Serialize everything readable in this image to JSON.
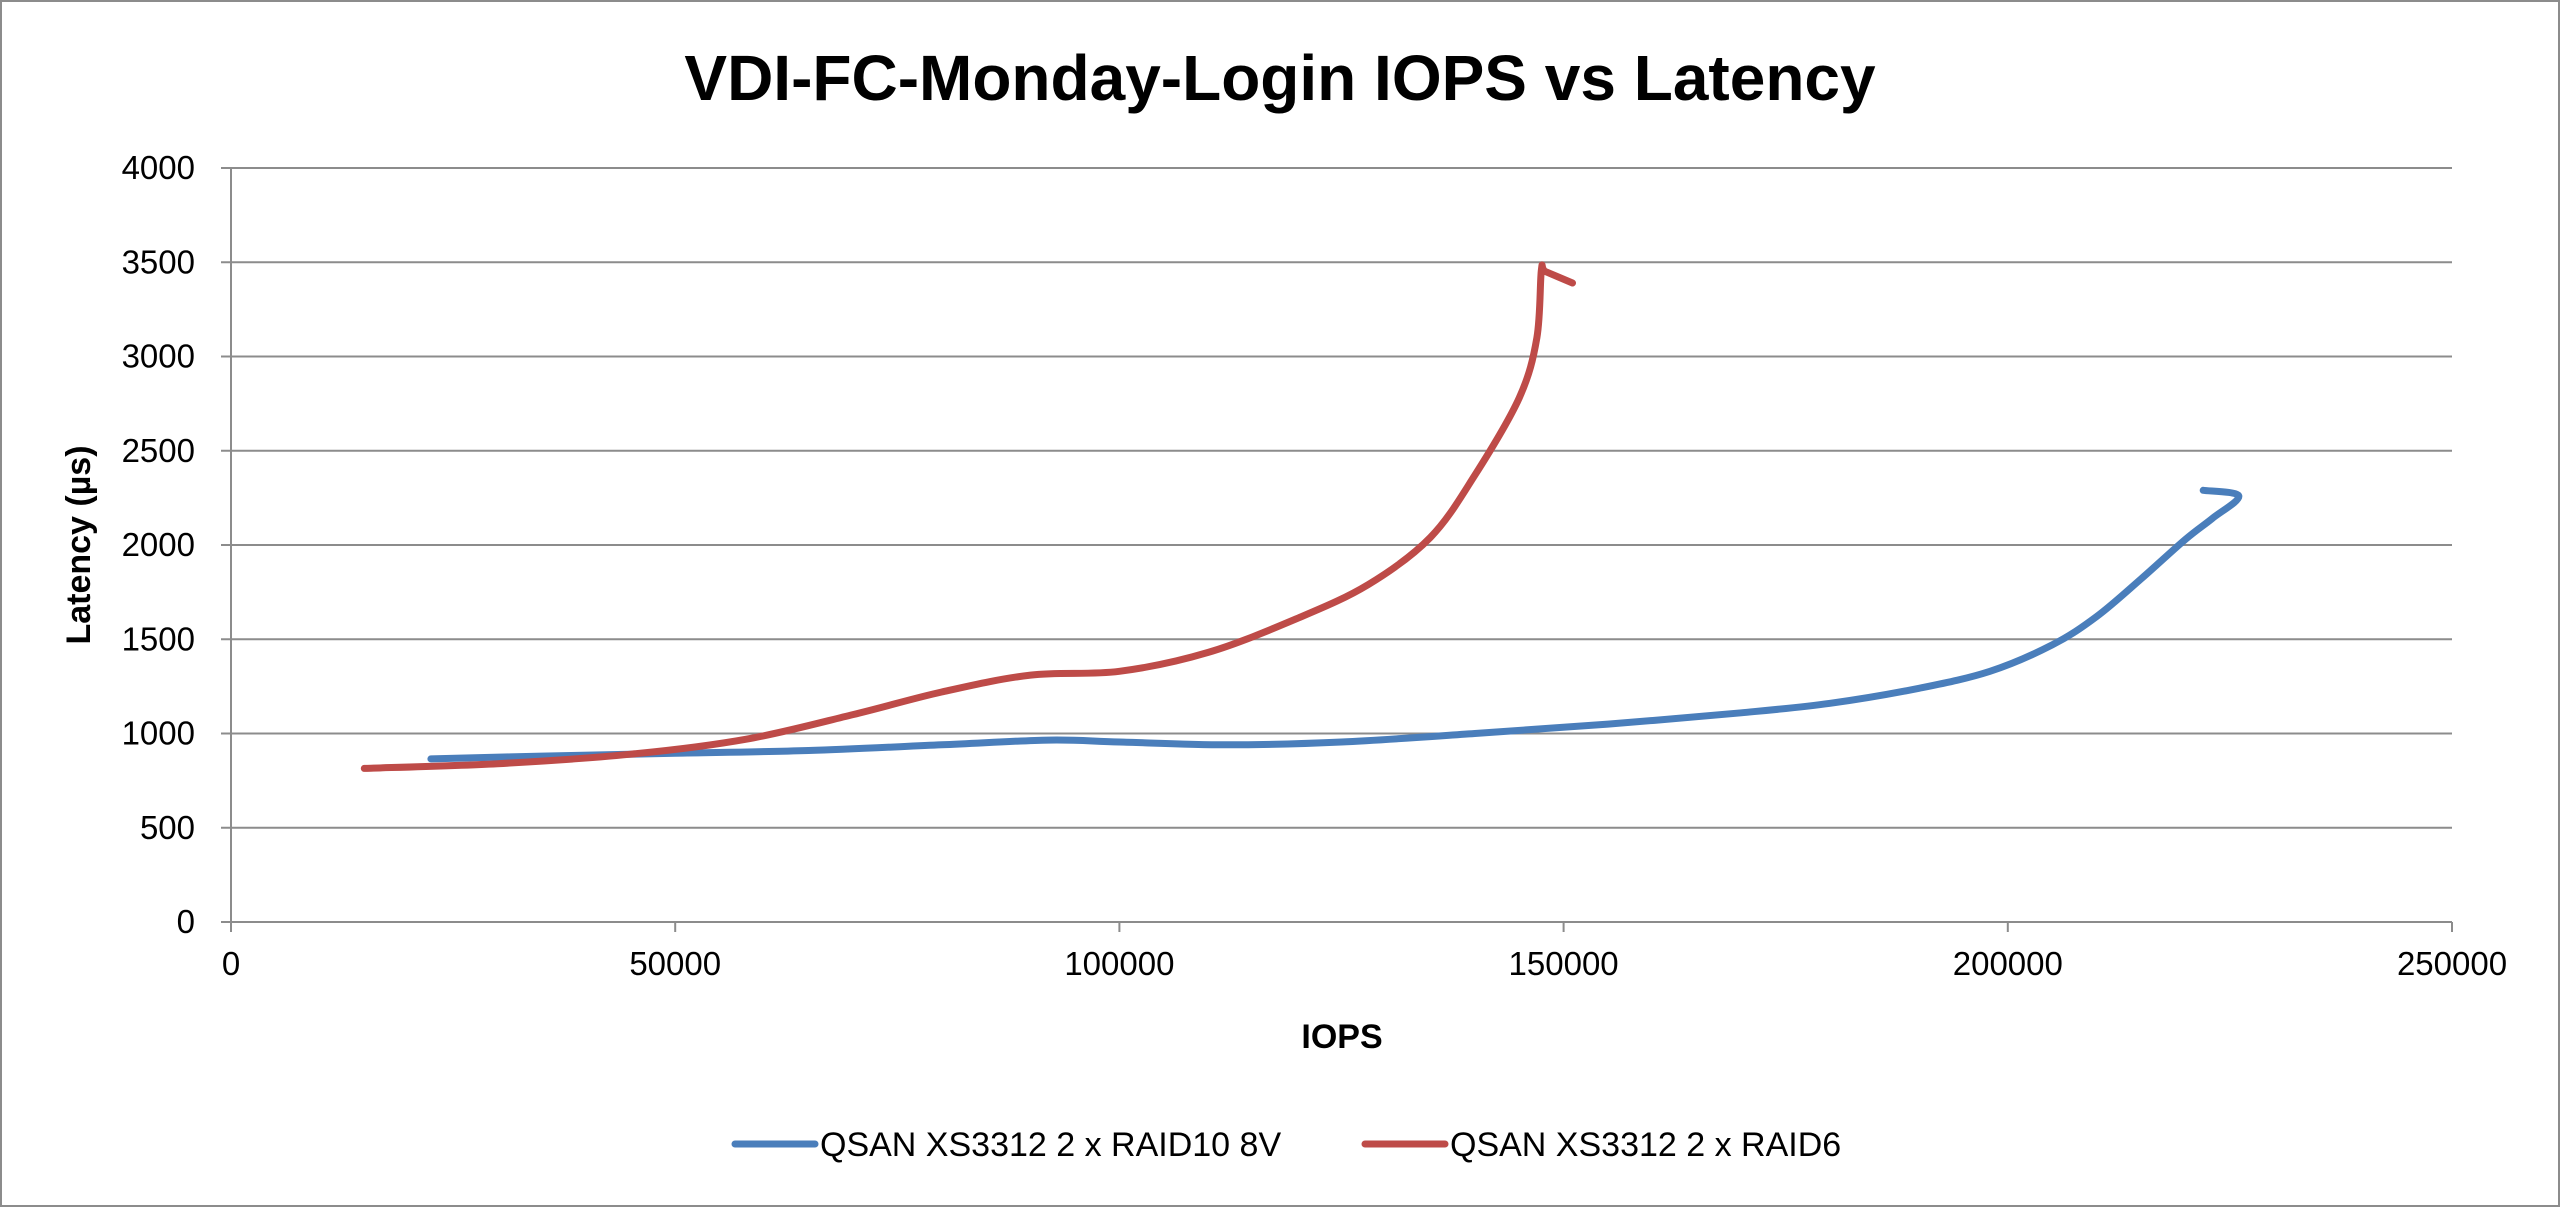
{
  "chart_data": {
    "type": "line",
    "title": "VDI-FC-Monday-Login IOPS vs Latency",
    "xlabel": "IOPS",
    "ylabel": "Latency (µs)",
    "xlim": [
      0,
      250000
    ],
    "ylim": [
      0,
      4000
    ],
    "x_ticks": [
      "0",
      "50000",
      "100000",
      "150000",
      "200000",
      "250000"
    ],
    "y_ticks": [
      "0",
      "500",
      "1000",
      "1500",
      "2000",
      "2500",
      "3000",
      "3500",
      "4000"
    ],
    "grid": true,
    "legend_position": "bottom",
    "series": [
      {
        "name": "QSAN XS3312 2 x RAID10 8V",
        "color": "#4a7ebb",
        "x": [
          22500,
          35000,
          50000,
          65000,
          80000,
          92000,
          100000,
          112000,
          125000,
          140000,
          155000,
          170000,
          180000,
          190000,
          198000,
          205000,
          210000,
          215000,
          220000,
          223000,
          226000,
          222000
        ],
        "y": [
          865,
          880,
          895,
          910,
          940,
          965,
          955,
          940,
          955,
          1000,
          1050,
          1110,
          1160,
          1240,
          1330,
          1470,
          1620,
          1820,
          2030,
          2140,
          2260,
          2290
        ]
      },
      {
        "name": "QSAN XS3312 2 x RAID6",
        "color": "#be4b48",
        "x": [
          15000,
          30000,
          45000,
          58000,
          70000,
          80000,
          90000,
          100000,
          110000,
          120000,
          128000,
          135000,
          140000,
          145000,
          147000,
          147500,
          148000,
          151000
        ],
        "y": [
          815,
          840,
          890,
          970,
          1100,
          1220,
          1310,
          1330,
          1430,
          1610,
          1790,
          2040,
          2370,
          2780,
          3100,
          3460,
          3450,
          3390
        ]
      }
    ]
  }
}
